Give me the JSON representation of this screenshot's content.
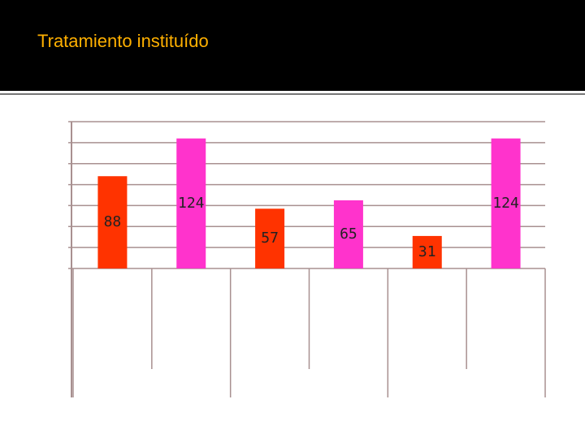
{
  "chart_data": {
    "type": "bar",
    "title": "Tratamiento instituído",
    "categories": [
      null,
      null,
      null,
      null,
      null,
      null
    ],
    "values": [
      88,
      124,
      57,
      65,
      31,
      124
    ],
    "colors": [
      "#ff3300",
      "#ff33cc",
      "#ff3300",
      "#ff33cc",
      "#ff3300",
      "#ff33cc"
    ],
    "ylim": [
      0,
      140
    ],
    "yticks": [
      0,
      20,
      40,
      60,
      80,
      100,
      120,
      140
    ],
    "grid": true
  }
}
